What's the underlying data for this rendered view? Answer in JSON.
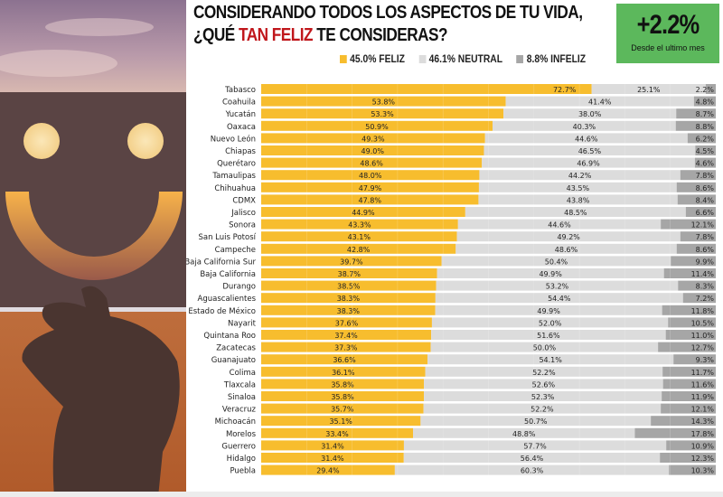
{
  "header": {
    "title_line1": "CONSIDERANDO TODOS LOS ASPECTOS DE TU VIDA,",
    "title_line2_pre": "¿QUÉ ",
    "title_line2_highlight": "TAN FELIZ",
    "title_line2_post": " TE CONSIDERAS?"
  },
  "badge": {
    "value": "+2.2%",
    "caption": "Desde el ultimo mes",
    "color": "#5cb85c"
  },
  "colors": {
    "feliz": "#f7bd2e",
    "neutral": "#dcdcdc",
    "infeliz": "#a6a6a6",
    "highlight": "#c0161b"
  },
  "chart_data": {
    "type": "bar",
    "orientation": "horizontal",
    "stacked": true,
    "title": "CONSIDERANDO TODOS LOS ASPECTOS DE TU VIDA, ¿QUÉ TAN FELIZ TE CONSIDERAS?",
    "xlim": [
      0,
      100
    ],
    "legend_position": "top",
    "legend": [
      {
        "name": "FELIZ",
        "label": "45.0% FELIZ",
        "color": "#f7bd2e"
      },
      {
        "name": "NEUTRAL",
        "label": "46.1% NEUTRAL",
        "color": "#dcdcdc"
      },
      {
        "name": "INFELIZ",
        "label": "8.8% INFELIZ",
        "color": "#a6a6a6"
      }
    ],
    "categories": [
      "Tabasco",
      "Coahuila",
      "Yucatán",
      "Oaxaca",
      "Nuevo León",
      "Chiapas",
      "Querétaro",
      "Tamaulipas",
      "Chihuahua",
      "CDMX",
      "Jalisco",
      "Sonora",
      "San Luis Potosí",
      "Campeche",
      "Baja California Sur",
      "Baja California",
      "Durango",
      "Aguascalientes",
      "Estado de México",
      "Nayarit",
      "Quintana Roo",
      "Zacatecas",
      "Guanajuato",
      "Colima",
      "Tlaxcala",
      "Sinaloa",
      "Veracruz",
      "Michoacán",
      "Morelos",
      "Guerrero",
      "Hidalgo",
      "Puebla"
    ],
    "series": [
      {
        "name": "FELIZ",
        "values": [
          72.7,
          53.8,
          53.3,
          50.9,
          49.3,
          49.0,
          48.6,
          48.0,
          47.9,
          47.8,
          44.9,
          43.3,
          43.1,
          42.8,
          39.7,
          38.7,
          38.5,
          38.3,
          38.3,
          37.6,
          37.4,
          37.3,
          36.6,
          36.1,
          35.8,
          35.8,
          35.7,
          35.1,
          33.4,
          31.4,
          31.4,
          29.4
        ]
      },
      {
        "name": "NEUTRAL",
        "values": [
          25.1,
          41.4,
          38.0,
          40.3,
          44.6,
          46.5,
          46.9,
          44.2,
          43.5,
          43.8,
          48.5,
          44.6,
          49.2,
          48.6,
          50.4,
          49.9,
          53.2,
          54.4,
          49.9,
          52.0,
          51.6,
          50.0,
          54.1,
          52.2,
          52.6,
          52.3,
          52.2,
          50.7,
          48.8,
          57.7,
          56.4,
          60.3
        ]
      },
      {
        "name": "INFELIZ",
        "values": [
          2.2,
          4.8,
          8.7,
          8.8,
          6.2,
          4.5,
          4.6,
          7.8,
          8.6,
          8.4,
          6.6,
          12.1,
          7.8,
          8.6,
          9.9,
          11.4,
          8.3,
          7.2,
          11.8,
          10.5,
          11.0,
          12.7,
          9.3,
          11.7,
          11.6,
          11.9,
          12.1,
          14.3,
          17.8,
          10.9,
          12.3,
          10.3
        ]
      }
    ]
  }
}
